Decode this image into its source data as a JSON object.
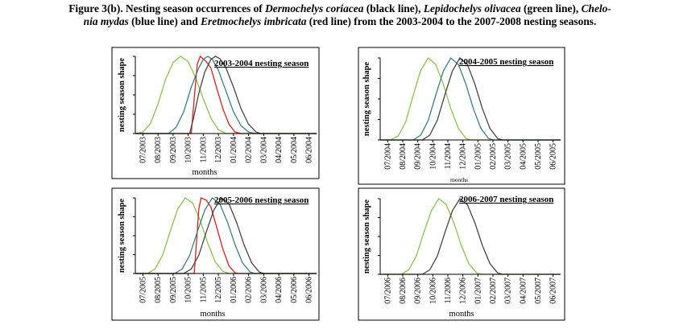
{
  "caption": {
    "line1": [
      {
        "t": "Figure 3(b). Nesting season occurrences of ",
        "i": false
      },
      {
        "t": "Dermochelys coriacea",
        "i": true
      },
      {
        "t": " (black line), ",
        "i": false
      },
      {
        "t": "Lepidochelys olivacea",
        "i": true
      },
      {
        "t": " (green line), ",
        "i": false
      },
      {
        "t": "Chelo-",
        "i": true
      }
    ],
    "line2": [
      {
        "t": "nia mydas",
        "i": true
      },
      {
        "t": " (blue line) and ",
        "i": false
      },
      {
        "t": "Eretmochelys imbricata",
        "i": true
      },
      {
        "t": " (red line) from the 2003-2004 to the 2007-2008 nesting seasons.",
        "i": false
      }
    ]
  },
  "chart_data": [
    {
      "type": "line",
      "title": "2003-2004 nesting season",
      "xlabel": "months",
      "ylabel": "nesting season shape",
      "categories": [
        "07/2003",
        "08/2003",
        "09/2003",
        "10/2003",
        "11/2003",
        "12/2003",
        "01/2004",
        "02/2004",
        "03/2004",
        "04/2004",
        "05/2004",
        "06/2004"
      ],
      "ylim": [
        0,
        1
      ],
      "series": [
        {
          "color": "#8bc34a",
          "points": [
            [
              0,
              0
            ],
            [
              0.5,
              0.02
            ],
            [
              1,
              0.13
            ],
            [
              1.5,
              0.38
            ],
            [
              2,
              0.7
            ],
            [
              2.5,
              0.92
            ],
            [
              3,
              1
            ],
            [
              3.5,
              0.93
            ],
            [
              4,
              0.72
            ],
            [
              4.5,
              0.45
            ],
            [
              5,
              0.2
            ],
            [
              5.5,
              0.05
            ],
            [
              6,
              0
            ],
            [
              12,
              0
            ]
          ]
        },
        {
          "color": "#e0201c",
          "points": [
            [
              0,
              0
            ],
            [
              3.7,
              0
            ],
            [
              3.9,
              0.45
            ],
            [
              4.1,
              0.9
            ],
            [
              4.3,
              1
            ],
            [
              4.7,
              0.93
            ],
            [
              5,
              0.85
            ],
            [
              5.4,
              0.58
            ],
            [
              5.8,
              0.32
            ],
            [
              6.2,
              0.12
            ],
            [
              6.6,
              0.02
            ],
            [
              7,
              0
            ],
            [
              12,
              0
            ]
          ]
        },
        {
          "color": "#3a7f86",
          "points": [
            [
              0,
              0
            ],
            [
              2.2,
              0
            ],
            [
              2.7,
              0.08
            ],
            [
              3.2,
              0.28
            ],
            [
              3.7,
              0.6
            ],
            [
              4.2,
              0.85
            ],
            [
              4.5,
              0.96
            ],
            [
              4.8,
              1
            ],
            [
              5.1,
              0.96
            ],
            [
              5.5,
              0.82
            ],
            [
              6,
              0.55
            ],
            [
              6.5,
              0.28
            ],
            [
              7,
              0.1
            ],
            [
              7.5,
              0.02
            ],
            [
              8,
              0
            ],
            [
              12,
              0
            ]
          ]
        },
        {
          "color": "#444444",
          "points": [
            [
              0,
              0
            ],
            [
              3.6,
              0
            ],
            [
              3.85,
              0.2
            ],
            [
              4.2,
              0.52
            ],
            [
              4.6,
              0.8
            ],
            [
              5,
              0.96
            ],
            [
              5.3,
              1
            ],
            [
              5.6,
              0.97
            ],
            [
              6,
              0.85
            ],
            [
              6.5,
              0.6
            ],
            [
              7,
              0.32
            ],
            [
              7.5,
              0.12
            ],
            [
              8,
              0.02
            ],
            [
              8.3,
              0
            ],
            [
              12,
              0
            ]
          ]
        }
      ]
    },
    {
      "type": "line",
      "title": "2004-2005 nesting season",
      "xlabel": "months",
      "ylabel": "nesting season shape",
      "categories": [
        "07/2004",
        "08/2004",
        "09/2004",
        "10/2004",
        "11/2004",
        "12/2004",
        "01/2005",
        "02/2005",
        "03/2005",
        "04/2005",
        "05/2005",
        "06/2005"
      ],
      "ylim": [
        0,
        1
      ],
      "series": [
        {
          "color": "#8bc34a",
          "points": [
            [
              0,
              0
            ],
            [
              0.7,
              0
            ],
            [
              1.2,
              0.05
            ],
            [
              1.7,
              0.22
            ],
            [
              2.2,
              0.55
            ],
            [
              2.7,
              0.85
            ],
            [
              3.2,
              1
            ],
            [
              3.7,
              0.92
            ],
            [
              4.2,
              0.68
            ],
            [
              4.7,
              0.38
            ],
            [
              5.2,
              0.14
            ],
            [
              5.7,
              0.02
            ],
            [
              6,
              0
            ],
            [
              12,
              0
            ]
          ]
        },
        {
          "color": "#3a7f86",
          "points": [
            [
              0,
              0
            ],
            [
              2.2,
              0
            ],
            [
              2.7,
              0.06
            ],
            [
              3.2,
              0.24
            ],
            [
              3.7,
              0.55
            ],
            [
              4.2,
              0.84
            ],
            [
              4.7,
              1
            ],
            [
              5.2,
              0.92
            ],
            [
              5.7,
              0.68
            ],
            [
              6.2,
              0.38
            ],
            [
              6.7,
              0.14
            ],
            [
              7.2,
              0.02
            ],
            [
              7.5,
              0
            ],
            [
              12,
              0
            ]
          ]
        },
        {
          "color": "#444444",
          "points": [
            [
              0,
              0
            ],
            [
              2.8,
              0
            ],
            [
              3.3,
              0.06
            ],
            [
              3.8,
              0.24
            ],
            [
              4.3,
              0.55
            ],
            [
              4.8,
              0.84
            ],
            [
              5.3,
              1
            ],
            [
              5.8,
              0.92
            ],
            [
              6.3,
              0.68
            ],
            [
              6.8,
              0.38
            ],
            [
              7.3,
              0.14
            ],
            [
              7.8,
              0.02
            ],
            [
              8.1,
              0
            ],
            [
              12,
              0
            ]
          ]
        }
      ]
    },
    {
      "type": "line",
      "title": "2005-2006 nesting season",
      "xlabel": "months",
      "ylabel": "nesting season shape",
      "categories": [
        "07/2005",
        "08/2005",
        "09/2005",
        "10/2005",
        "11/2005",
        "12/2005",
        "01/2006",
        "02/2006",
        "03/2006",
        "04/2006",
        "05/2006",
        "06/2006"
      ],
      "ylim": [
        0,
        1
      ],
      "series": [
        {
          "color": "#8bc34a",
          "points": [
            [
              0,
              0
            ],
            [
              0.8,
              0
            ],
            [
              1.3,
              0.06
            ],
            [
              1.8,
              0.24
            ],
            [
              2.3,
              0.55
            ],
            [
              2.8,
              0.85
            ],
            [
              3.3,
              1
            ],
            [
              3.8,
              0.93
            ],
            [
              4.3,
              0.7
            ],
            [
              4.8,
              0.4
            ],
            [
              5.3,
              0.15
            ],
            [
              5.8,
              0.03
            ],
            [
              6.2,
              0
            ],
            [
              12,
              0
            ]
          ]
        },
        {
          "color": "#e0201c",
          "points": [
            [
              0,
              0
            ],
            [
              3.9,
              0
            ],
            [
              4.05,
              0.4
            ],
            [
              4.2,
              0.85
            ],
            [
              4.35,
              1
            ],
            [
              4.7,
              0.97
            ],
            [
              5,
              0.88
            ],
            [
              5.4,
              0.6
            ],
            [
              5.8,
              0.32
            ],
            [
              6.2,
              0.1
            ],
            [
              6.6,
              0.01
            ],
            [
              6.8,
              0
            ],
            [
              12,
              0
            ]
          ]
        },
        {
          "color": "#3a7f86",
          "points": [
            [
              0,
              0
            ],
            [
              2.6,
              0
            ],
            [
              3.1,
              0.06
            ],
            [
              3.6,
              0.24
            ],
            [
              4.1,
              0.55
            ],
            [
              4.6,
              0.84
            ],
            [
              5.1,
              1
            ],
            [
              5.6,
              0.92
            ],
            [
              6.1,
              0.68
            ],
            [
              6.6,
              0.38
            ],
            [
              7.1,
              0.14
            ],
            [
              7.6,
              0.02
            ],
            [
              7.9,
              0
            ],
            [
              12,
              0
            ]
          ]
        },
        {
          "color": "#444444",
          "points": [
            [
              0,
              0
            ],
            [
              3.2,
              0
            ],
            [
              3.7,
              0.06
            ],
            [
              4.2,
              0.24
            ],
            [
              4.7,
              0.55
            ],
            [
              5.2,
              0.84
            ],
            [
              5.7,
              1
            ],
            [
              6.2,
              0.92
            ],
            [
              6.7,
              0.68
            ],
            [
              7.2,
              0.38
            ],
            [
              7.7,
              0.14
            ],
            [
              8.2,
              0.02
            ],
            [
              8.5,
              0
            ],
            [
              12,
              0
            ]
          ]
        }
      ]
    },
    {
      "type": "line",
      "title": "2006-2007 nesting season",
      "xlabel": "months",
      "ylabel": "nesting season shape",
      "categories": [
        "07/2006",
        "08/2006",
        "09/2006",
        "10/2006",
        "11/2006",
        "12/2006",
        "01/2007",
        "02/2007",
        "03/2007",
        "04/2007",
        "05/2007",
        "06/2007"
      ],
      "ylim": [
        0,
        1
      ],
      "series": [
        {
          "color": "#8bc34a",
          "points": [
            [
              0,
              0
            ],
            [
              1.4,
              0
            ],
            [
              1.9,
              0.06
            ],
            [
              2.4,
              0.24
            ],
            [
              2.9,
              0.55
            ],
            [
              3.4,
              0.84
            ],
            [
              3.9,
              1
            ],
            [
              4.4,
              0.92
            ],
            [
              4.9,
              0.68
            ],
            [
              5.4,
              0.38
            ],
            [
              5.9,
              0.14
            ],
            [
              6.4,
              0.02
            ],
            [
              6.7,
              0
            ],
            [
              12,
              0
            ]
          ]
        },
        {
          "color": "#444444",
          "points": [
            [
              0,
              0
            ],
            [
              2.8,
              0
            ],
            [
              3.3,
              0.06
            ],
            [
              3.8,
              0.24
            ],
            [
              4.3,
              0.55
            ],
            [
              4.8,
              0.84
            ],
            [
              5.3,
              1
            ],
            [
              5.8,
              0.92
            ],
            [
              6.3,
              0.68
            ],
            [
              6.8,
              0.38
            ],
            [
              7.3,
              0.14
            ],
            [
              7.8,
              0.02
            ],
            [
              8.1,
              0
            ],
            [
              12,
              0
            ]
          ]
        }
      ]
    }
  ]
}
